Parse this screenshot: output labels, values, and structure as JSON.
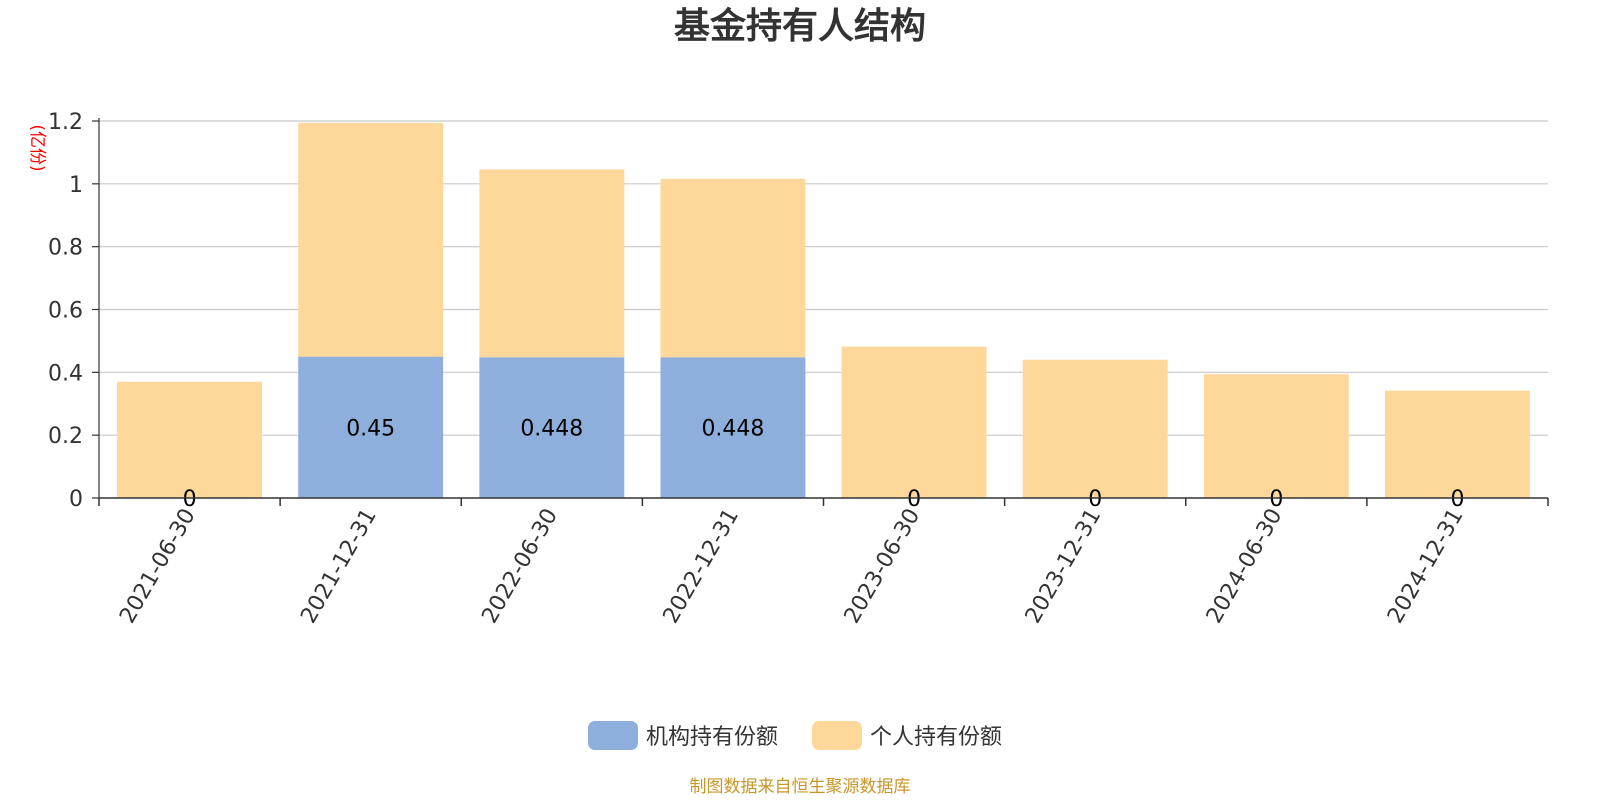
{
  "chart_data": {
    "type": "bar",
    "stacked": true,
    "title": "基金持有人结构",
    "unit_label": "(亿份)",
    "categories": [
      "2021-06-30",
      "2021-12-31",
      "2022-06-30",
      "2022-12-31",
      "2023-06-30",
      "2023-12-31",
      "2024-06-30",
      "2024-12-31"
    ],
    "ylim": [
      0,
      1.2
    ],
    "yticks": [
      "0",
      "0.2",
      "0.4",
      "0.6",
      "0.8",
      "1",
      "1.2"
    ],
    "grid": true,
    "legend_position": "bottom-center",
    "series": [
      {
        "name": "机构持有份额",
        "color": "#8eaedb",
        "values": [
          0,
          0.45,
          0.448,
          0.448,
          0,
          0,
          0,
          0
        ],
        "labels": [
          "0",
          "0.45",
          "0.448",
          "0.448",
          "0",
          "0",
          "0",
          "0"
        ]
      },
      {
        "name": "个人持有份额",
        "color": "#fed89a",
        "values": [
          0.37,
          0.744,
          0.598,
          0.568,
          0.482,
          0.44,
          0.394,
          0.342
        ]
      }
    ]
  },
  "source_text": "制图数据来自恒生聚源数据库",
  "source_color": "#c8962a"
}
